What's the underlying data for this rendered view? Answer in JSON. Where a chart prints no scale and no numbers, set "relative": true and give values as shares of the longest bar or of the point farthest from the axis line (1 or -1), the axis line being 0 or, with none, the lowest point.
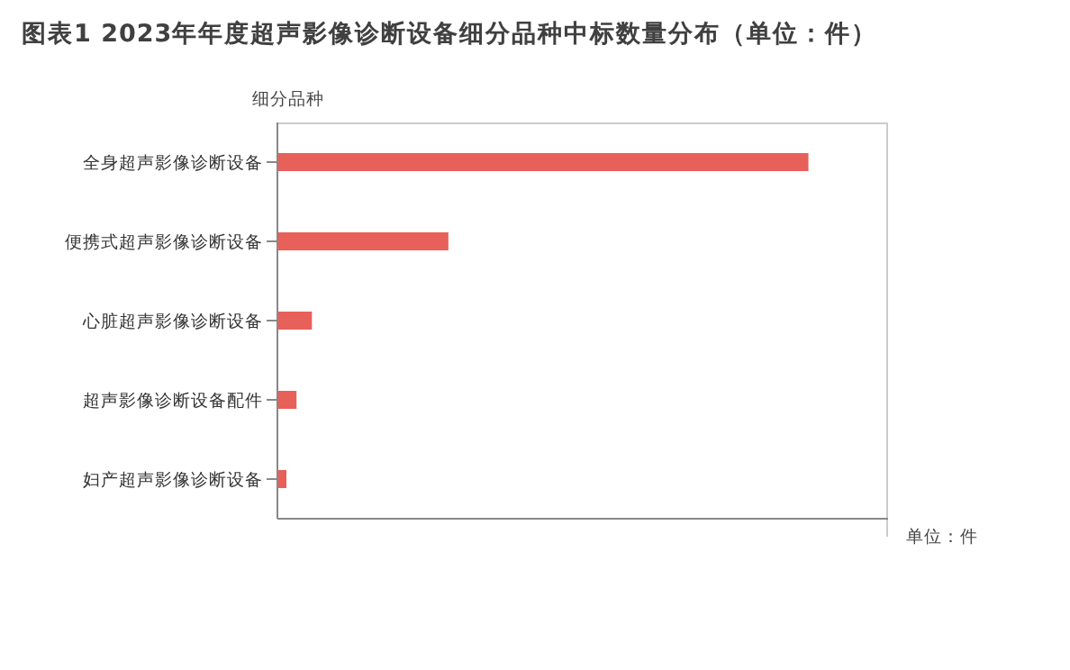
{
  "chart_data": {
    "type": "bar",
    "orientation": "horizontal",
    "relative": true,
    "title": "图表1 2023年年度超声影像诊断设备细分品种中标数量分布（单位：件）",
    "ylabel": "细分品种",
    "annotations": [
      "单位：件"
    ],
    "categories": [
      "全身超声影像诊断设备",
      "便携式超声影像诊断设备",
      "心脏超声影像诊断设备",
      "超声影像诊断设备配件",
      "妇产超声影像诊断设备"
    ],
    "values": [
      1,
      0.322,
      0.065,
      0.036,
      0.017
    ],
    "color": "#e8605a",
    "grid": false,
    "legend": false
  }
}
